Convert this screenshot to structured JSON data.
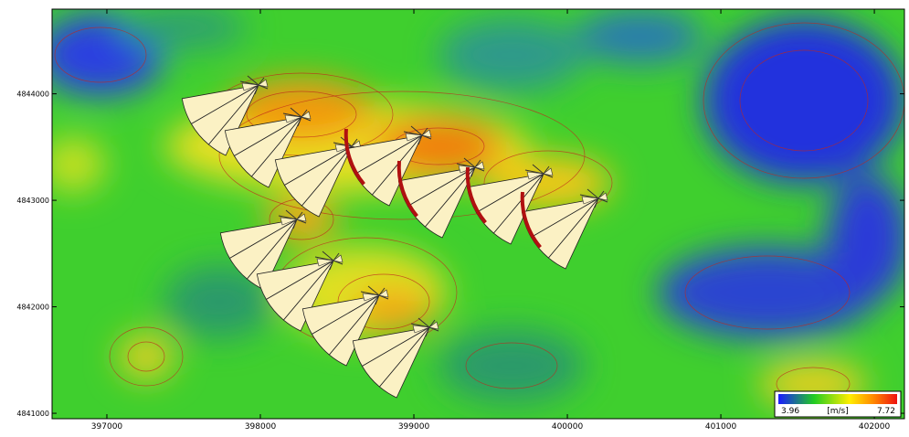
{
  "map": {
    "xlim": [
      396643,
      402196
    ],
    "ylim": [
      4840949,
      4844795
    ],
    "xticks": [
      397000,
      398000,
      399000,
      400000,
      401000,
      402000
    ],
    "yticks": [
      4841000,
      4842000,
      4843000,
      4844000
    ],
    "colorbar": {
      "min": 3.96,
      "max": 7.72,
      "unit": "[m/s]"
    }
  }
}
